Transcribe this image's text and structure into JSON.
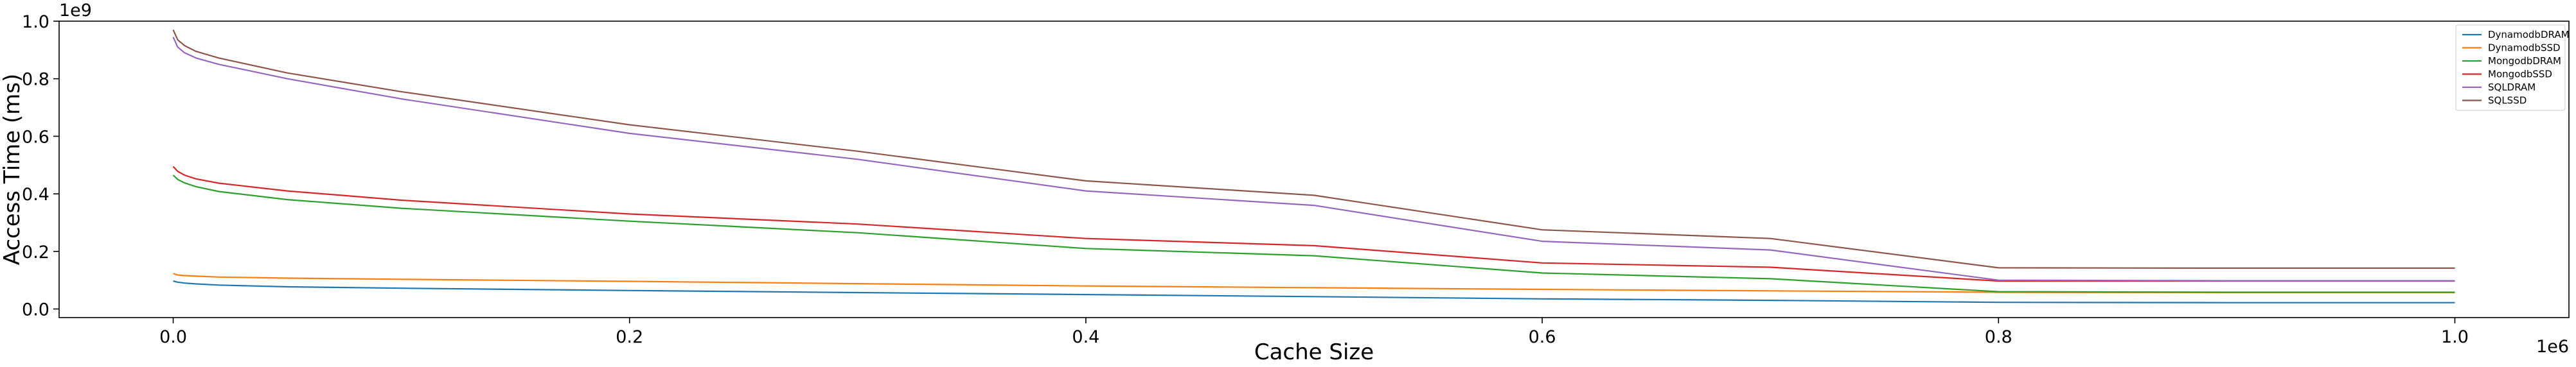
{
  "chart_data": {
    "type": "line",
    "title": "",
    "xlabel": "Cache Size",
    "ylabel": "Access Time (ms)",
    "x_offset_text": "1e6",
    "y_offset_text": "1e9",
    "xlim": [
      -0.05,
      1.05
    ],
    "ylim": [
      -0.03,
      1.0
    ],
    "x_ticks": [
      0.0,
      0.2,
      0.4,
      0.6,
      0.8,
      1.0
    ],
    "x_tick_labels": [
      "0.0",
      "0.2",
      "0.4",
      "0.6",
      "0.8",
      "1.0"
    ],
    "y_ticks": [
      0.0,
      0.2,
      0.4,
      0.6,
      0.8,
      1.0
    ],
    "y_tick_labels": [
      "0.0",
      "0.2",
      "0.4",
      "0.6",
      "0.8",
      "1.0"
    ],
    "grid": false,
    "legend_position": "top-right",
    "x": [
      0.0,
      0.002,
      0.005,
      0.01,
      0.02,
      0.05,
      0.1,
      0.2,
      0.3,
      0.4,
      0.5,
      0.6,
      0.7,
      0.8,
      0.9,
      1.0
    ],
    "series": [
      {
        "name": "DynamodbDRAM",
        "color": "#1f77b4",
        "values": [
          0.097,
          0.093,
          0.09,
          0.087,
          0.083,
          0.077,
          0.072,
          0.064,
          0.057,
          0.05,
          0.043,
          0.035,
          0.03,
          0.023,
          0.022,
          0.022
        ]
      },
      {
        "name": "DynamodbSSD",
        "color": "#ff7f0e",
        "values": [
          0.123,
          0.118,
          0.116,
          0.114,
          0.111,
          0.107,
          0.103,
          0.096,
          0.088,
          0.08,
          0.074,
          0.068,
          0.063,
          0.058,
          0.057,
          0.057
        ]
      },
      {
        "name": "MongodbDRAM",
        "color": "#2ca02c",
        "values": [
          0.465,
          0.45,
          0.438,
          0.425,
          0.408,
          0.38,
          0.35,
          0.305,
          0.265,
          0.21,
          0.185,
          0.125,
          0.105,
          0.06,
          0.058,
          0.058
        ]
      },
      {
        "name": "MongodbSSD",
        "color": "#d62728",
        "values": [
          0.495,
          0.478,
          0.465,
          0.452,
          0.437,
          0.41,
          0.378,
          0.33,
          0.295,
          0.245,
          0.22,
          0.16,
          0.145,
          0.097,
          0.097,
          0.097
        ]
      },
      {
        "name": "SQLDRAM",
        "color": "#9467bd",
        "values": [
          0.945,
          0.91,
          0.89,
          0.872,
          0.85,
          0.8,
          0.73,
          0.61,
          0.52,
          0.41,
          0.36,
          0.235,
          0.205,
          0.1,
          0.098,
          0.098
        ]
      },
      {
        "name": "SQLSSD",
        "color": "#8c564b",
        "values": [
          0.97,
          0.935,
          0.915,
          0.895,
          0.872,
          0.82,
          0.755,
          0.64,
          0.548,
          0.445,
          0.395,
          0.275,
          0.245,
          0.143,
          0.142,
          0.142
        ]
      }
    ]
  }
}
